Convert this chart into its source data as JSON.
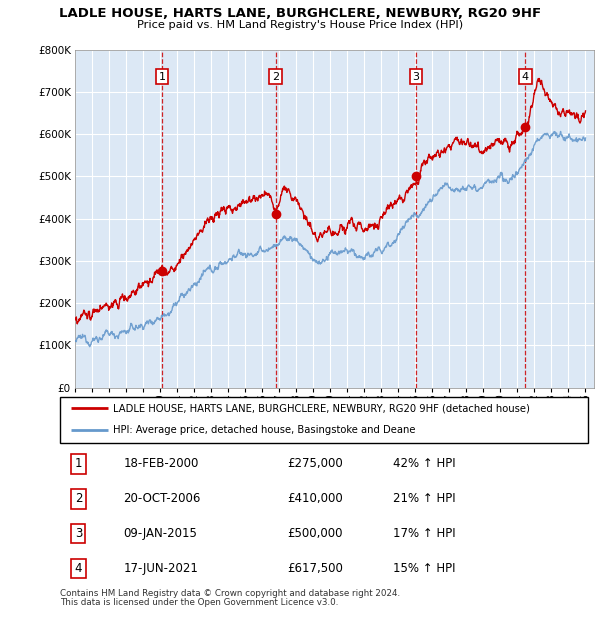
{
  "title": "LADLE HOUSE, HARTS LANE, BURGHCLERE, NEWBURY, RG20 9HF",
  "subtitle": "Price paid vs. HM Land Registry's House Price Index (HPI)",
  "x_start": 1995.0,
  "x_end": 2025.5,
  "y_min": 0,
  "y_max": 800000,
  "y_ticks": [
    0,
    100000,
    200000,
    300000,
    400000,
    500000,
    600000,
    700000,
    800000
  ],
  "y_tick_labels": [
    "£0",
    "£100K",
    "£200K",
    "£300K",
    "£400K",
    "£500K",
    "£600K",
    "£700K",
    "£800K"
  ],
  "sale_color": "#cc0000",
  "hpi_color": "#6699cc",
  "vline_color": "#cc0000",
  "plot_bg_color": "#dce8f5",
  "grid_color": "#ffffff",
  "transactions": [
    {
      "num": 1,
      "date": "18-FEB-2000",
      "price": 275000,
      "pct": "42%",
      "x": 2000.12
    },
    {
      "num": 2,
      "date": "20-OCT-2006",
      "price": 410000,
      "pct": "21%",
      "x": 2006.8
    },
    {
      "num": 3,
      "date": "09-JAN-2015",
      "price": 500000,
      "pct": "17%",
      "x": 2015.04
    },
    {
      "num": 4,
      "date": "17-JUN-2021",
      "price": 617500,
      "pct": "15%",
      "x": 2021.46
    }
  ],
  "legend_house": "LADLE HOUSE, HARTS LANE, BURGHCLERE, NEWBURY, RG20 9HF (detached house)",
  "legend_hpi": "HPI: Average price, detached house, Basingstoke and Deane",
  "footnote1": "Contains HM Land Registry data © Crown copyright and database right 2024.",
  "footnote2": "This data is licensed under the Open Government Licence v3.0.",
  "x_tick_years": [
    1995,
    1996,
    1997,
    1998,
    1999,
    2000,
    2001,
    2002,
    2003,
    2004,
    2005,
    2006,
    2007,
    2008,
    2009,
    2010,
    2011,
    2012,
    2013,
    2014,
    2015,
    2016,
    2017,
    2018,
    2019,
    2020,
    2021,
    2022,
    2023,
    2024,
    2025
  ]
}
